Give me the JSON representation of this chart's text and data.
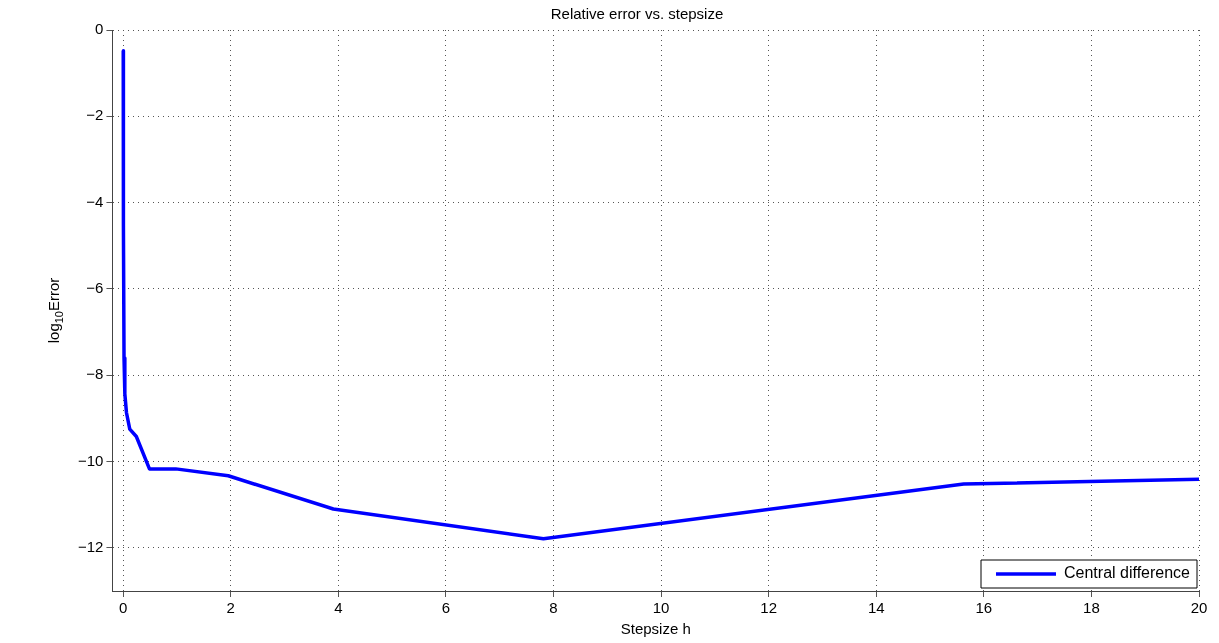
{
  "chart_data": {
    "type": "line",
    "title": "Relative error vs. stepsize",
    "xlabel": "Stepsize h",
    "ylabel": "log$_{10}$Error",
    "x": [
      0.0005,
      0.004,
      0.0153,
      0.0305,
      0.061,
      0.122,
      0.244,
      0.488,
      0.977,
      1.953,
      3.906,
      7.8125,
      15.625,
      20
    ],
    "series": [
      {
        "name": "Central difference",
        "color": "#0000ff",
        "values": [
          -0.48,
          -4.5,
          -7.6,
          -8.43,
          -8.87,
          -9.25,
          -9.42,
          -10.17,
          -10.17,
          -10.33,
          -11.1,
          -11.79,
          -10.52,
          -10.41
        ]
      }
    ],
    "xlim": [
      -0.2,
      20
    ],
    "xticks": [
      0,
      2,
      4,
      6,
      8,
      10,
      12,
      14,
      16,
      18,
      20
    ],
    "ylim": [
      -13,
      0
    ],
    "yticks": [
      -12,
      -10,
      -8,
      -6,
      -4,
      -2,
      0
    ],
    "grid": true,
    "legend": "bottom right",
    "marker": "none",
    "line_style": "solid"
  }
}
